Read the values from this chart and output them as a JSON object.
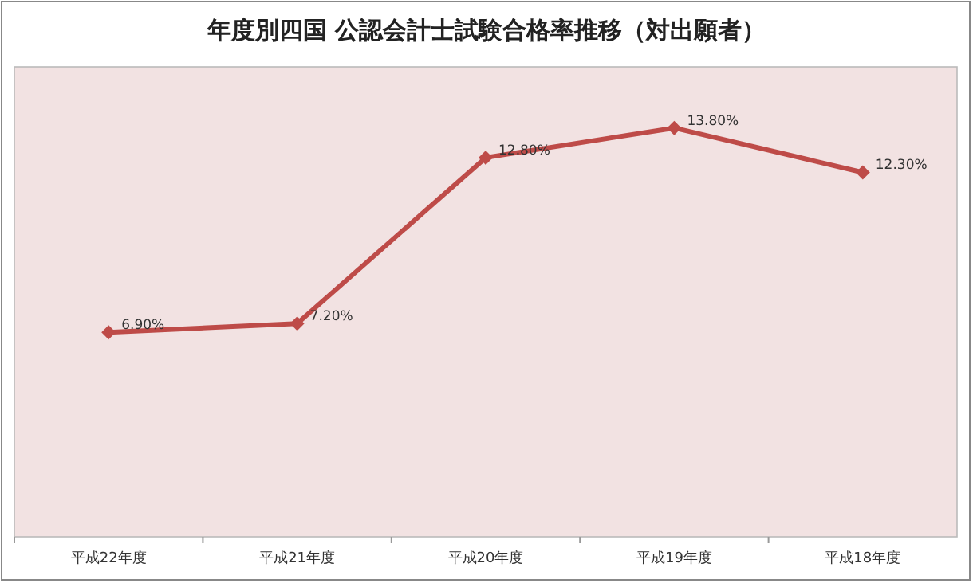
{
  "chart_data": {
    "type": "line",
    "title": "年度別四国  公認会計士試験合格率推移（対出願者）",
    "categories": [
      "平成22年度",
      "平成21年度",
      "平成20年度",
      "平成19年度",
      "平成18年度"
    ],
    "series": [
      {
        "color": "#be4b48",
        "values": [
          6.9,
          7.2,
          12.8,
          13.8,
          12.3
        ],
        "value_labels": [
          "6.90%",
          "7.20%",
          "12.80%",
          "13.80%",
          "12.30%"
        ]
      }
    ],
    "marker": "diamond",
    "line_style": "solid",
    "grid": false
  }
}
